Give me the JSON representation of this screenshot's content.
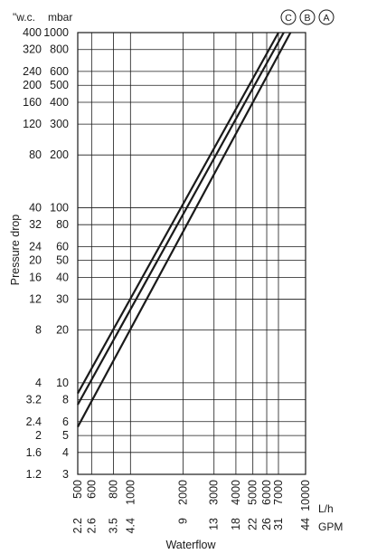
{
  "chart_data": {
    "type": "line",
    "x_scale": "log",
    "y_scale": "log",
    "grid": true,
    "xlabel": "Waterflow",
    "ylabel": "Pressure drop",
    "x_unit_primary": "L/h",
    "x_unit_secondary": "GPM",
    "y_unit_primary": "mbar",
    "y_unit_secondary": "\"w.c.",
    "xlim": [
      500,
      10000
    ],
    "ylim": [
      3,
      1000
    ],
    "x_ticks_lh": [
      "500",
      "600",
      "800",
      "1000",
      "2000",
      "3000",
      "4000",
      "5000",
      "6000",
      "7000",
      "10000"
    ],
    "x_tick_values": [
      500,
      600,
      800,
      1000,
      2000,
      3000,
      4000,
      5000,
      6000,
      7000,
      10000
    ],
    "x_ticks_gpm": [
      "2.2",
      "2.6",
      "3.5",
      "4.4",
      "9",
      "13",
      "18",
      "22",
      "26",
      "31",
      "44"
    ],
    "x_ticks_gpm_at_lh": [
      500,
      600,
      800,
      1000,
      2000,
      3000,
      4000,
      5000,
      6000,
      7000,
      10000
    ],
    "y_ticks_mbar": [
      "3",
      "4",
      "5",
      "6",
      "8",
      "10",
      "20",
      "30",
      "40",
      "50",
      "60",
      "80",
      "100",
      "200",
      "300",
      "400",
      "500",
      "600",
      "800",
      "1000"
    ],
    "y_tick_values": [
      3,
      4,
      5,
      6,
      8,
      10,
      20,
      30,
      40,
      50,
      60,
      80,
      100,
      200,
      300,
      400,
      500,
      600,
      800,
      1000
    ],
    "y_ticks_wc": [
      "1.2",
      "1.6",
      "2",
      "2.4",
      "3.2",
      "4",
      "8",
      "12",
      "16",
      "20",
      "24",
      "32",
      "40",
      "80",
      "120",
      "160",
      "200",
      "240",
      "320",
      "400"
    ],
    "y_ticks_wc_at_mbar": [
      3,
      4,
      5,
      6,
      8,
      10,
      20,
      30,
      40,
      50,
      60,
      80,
      100,
      200,
      300,
      400,
      500,
      600,
      800,
      1000
    ],
    "series": [
      {
        "name": "C",
        "x": [
          500,
          7000
        ],
        "y": [
          8.7,
          1000
        ]
      },
      {
        "name": "B",
        "x": [
          500,
          7500
        ],
        "y": [
          7.5,
          1000
        ]
      },
      {
        "name": "A",
        "x": [
          500,
          8200
        ],
        "y": [
          5.6,
          1000
        ]
      }
    ],
    "legend_order": [
      "C",
      "B",
      "A"
    ],
    "legend_position": "top-right"
  }
}
